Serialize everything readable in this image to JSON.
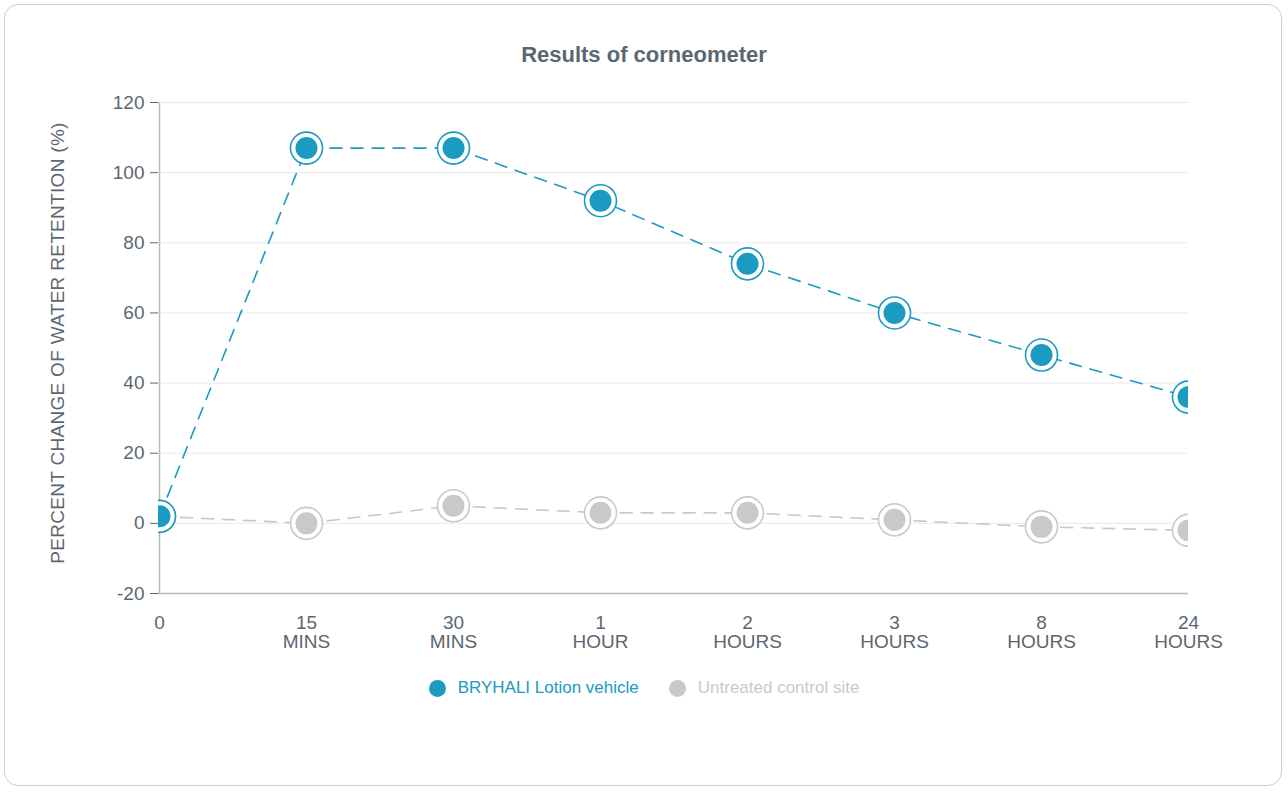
{
  "chart_data": {
    "type": "line",
    "title": "Results of corneometer",
    "y_label": "PERCENT CHANGE OF WATER RETENTION (%)",
    "categories": [
      "0",
      "15\nMINS",
      "30\nMINS",
      "1\nHOUR",
      "2\nHOURS",
      "3\nHOURS",
      "8\nHOURS",
      "24\nHOURS"
    ],
    "series": [
      {
        "name": "BRYHALI Lotion vehicle",
        "color": "#1b9ac2",
        "marker": "circle",
        "line_style": "dashed",
        "values": [
          2,
          107,
          107,
          92,
          74,
          60,
          48,
          36
        ]
      },
      {
        "name": "Untreated control site",
        "color": "#c9c9c9",
        "marker": "circle",
        "line_style": "dashed",
        "values": [
          2,
          0,
          5,
          3,
          3,
          1,
          -1,
          -2
        ]
      }
    ],
    "ylim": [
      -20,
      120
    ],
    "yticks": [
      -20,
      0,
      20,
      40,
      60,
      80,
      100,
      120
    ],
    "grid": true,
    "legend": "bottom"
  }
}
